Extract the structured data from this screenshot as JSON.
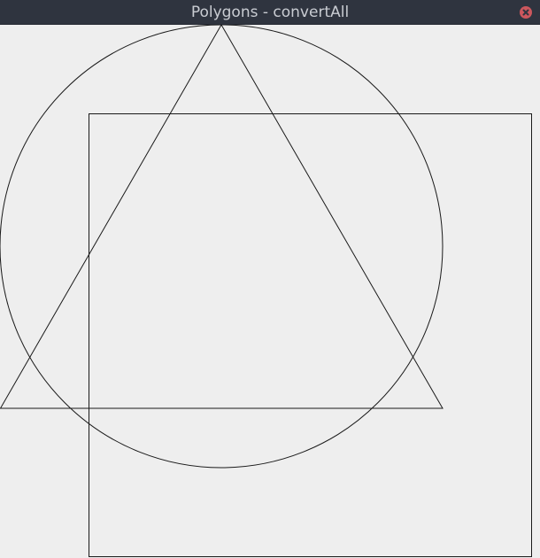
{
  "window": {
    "title": "Polygons - convertAll"
  },
  "icons": {
    "close": "close-icon"
  },
  "colors": {
    "titlebar": "#2f343f",
    "title_text": "#c9ccd2",
    "close_button": "#cc575d",
    "canvas_background": "#eeeeee",
    "stroke": "#1a1a1a"
  },
  "shapes": [
    {
      "name": "circle-shape"
    },
    {
      "name": "square-shape"
    },
    {
      "name": "triangle-shape"
    }
  ]
}
